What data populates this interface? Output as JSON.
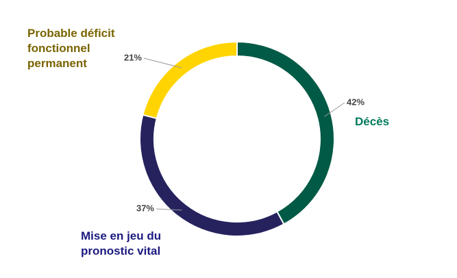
{
  "chart_data": {
    "type": "donut",
    "categories": [
      "Décès",
      "Mise en jeu du pronostic vital",
      "Probable déficit fonctionnel permanent"
    ],
    "values": [
      42,
      37,
      21
    ],
    "value_labels": [
      "42%",
      "37%",
      "21%"
    ],
    "colors": [
      "#005a45",
      "#25225e",
      "#ffd400"
    ],
    "label_colors": [
      "#007a5c",
      "#1c1a80",
      "#7a6400"
    ]
  }
}
